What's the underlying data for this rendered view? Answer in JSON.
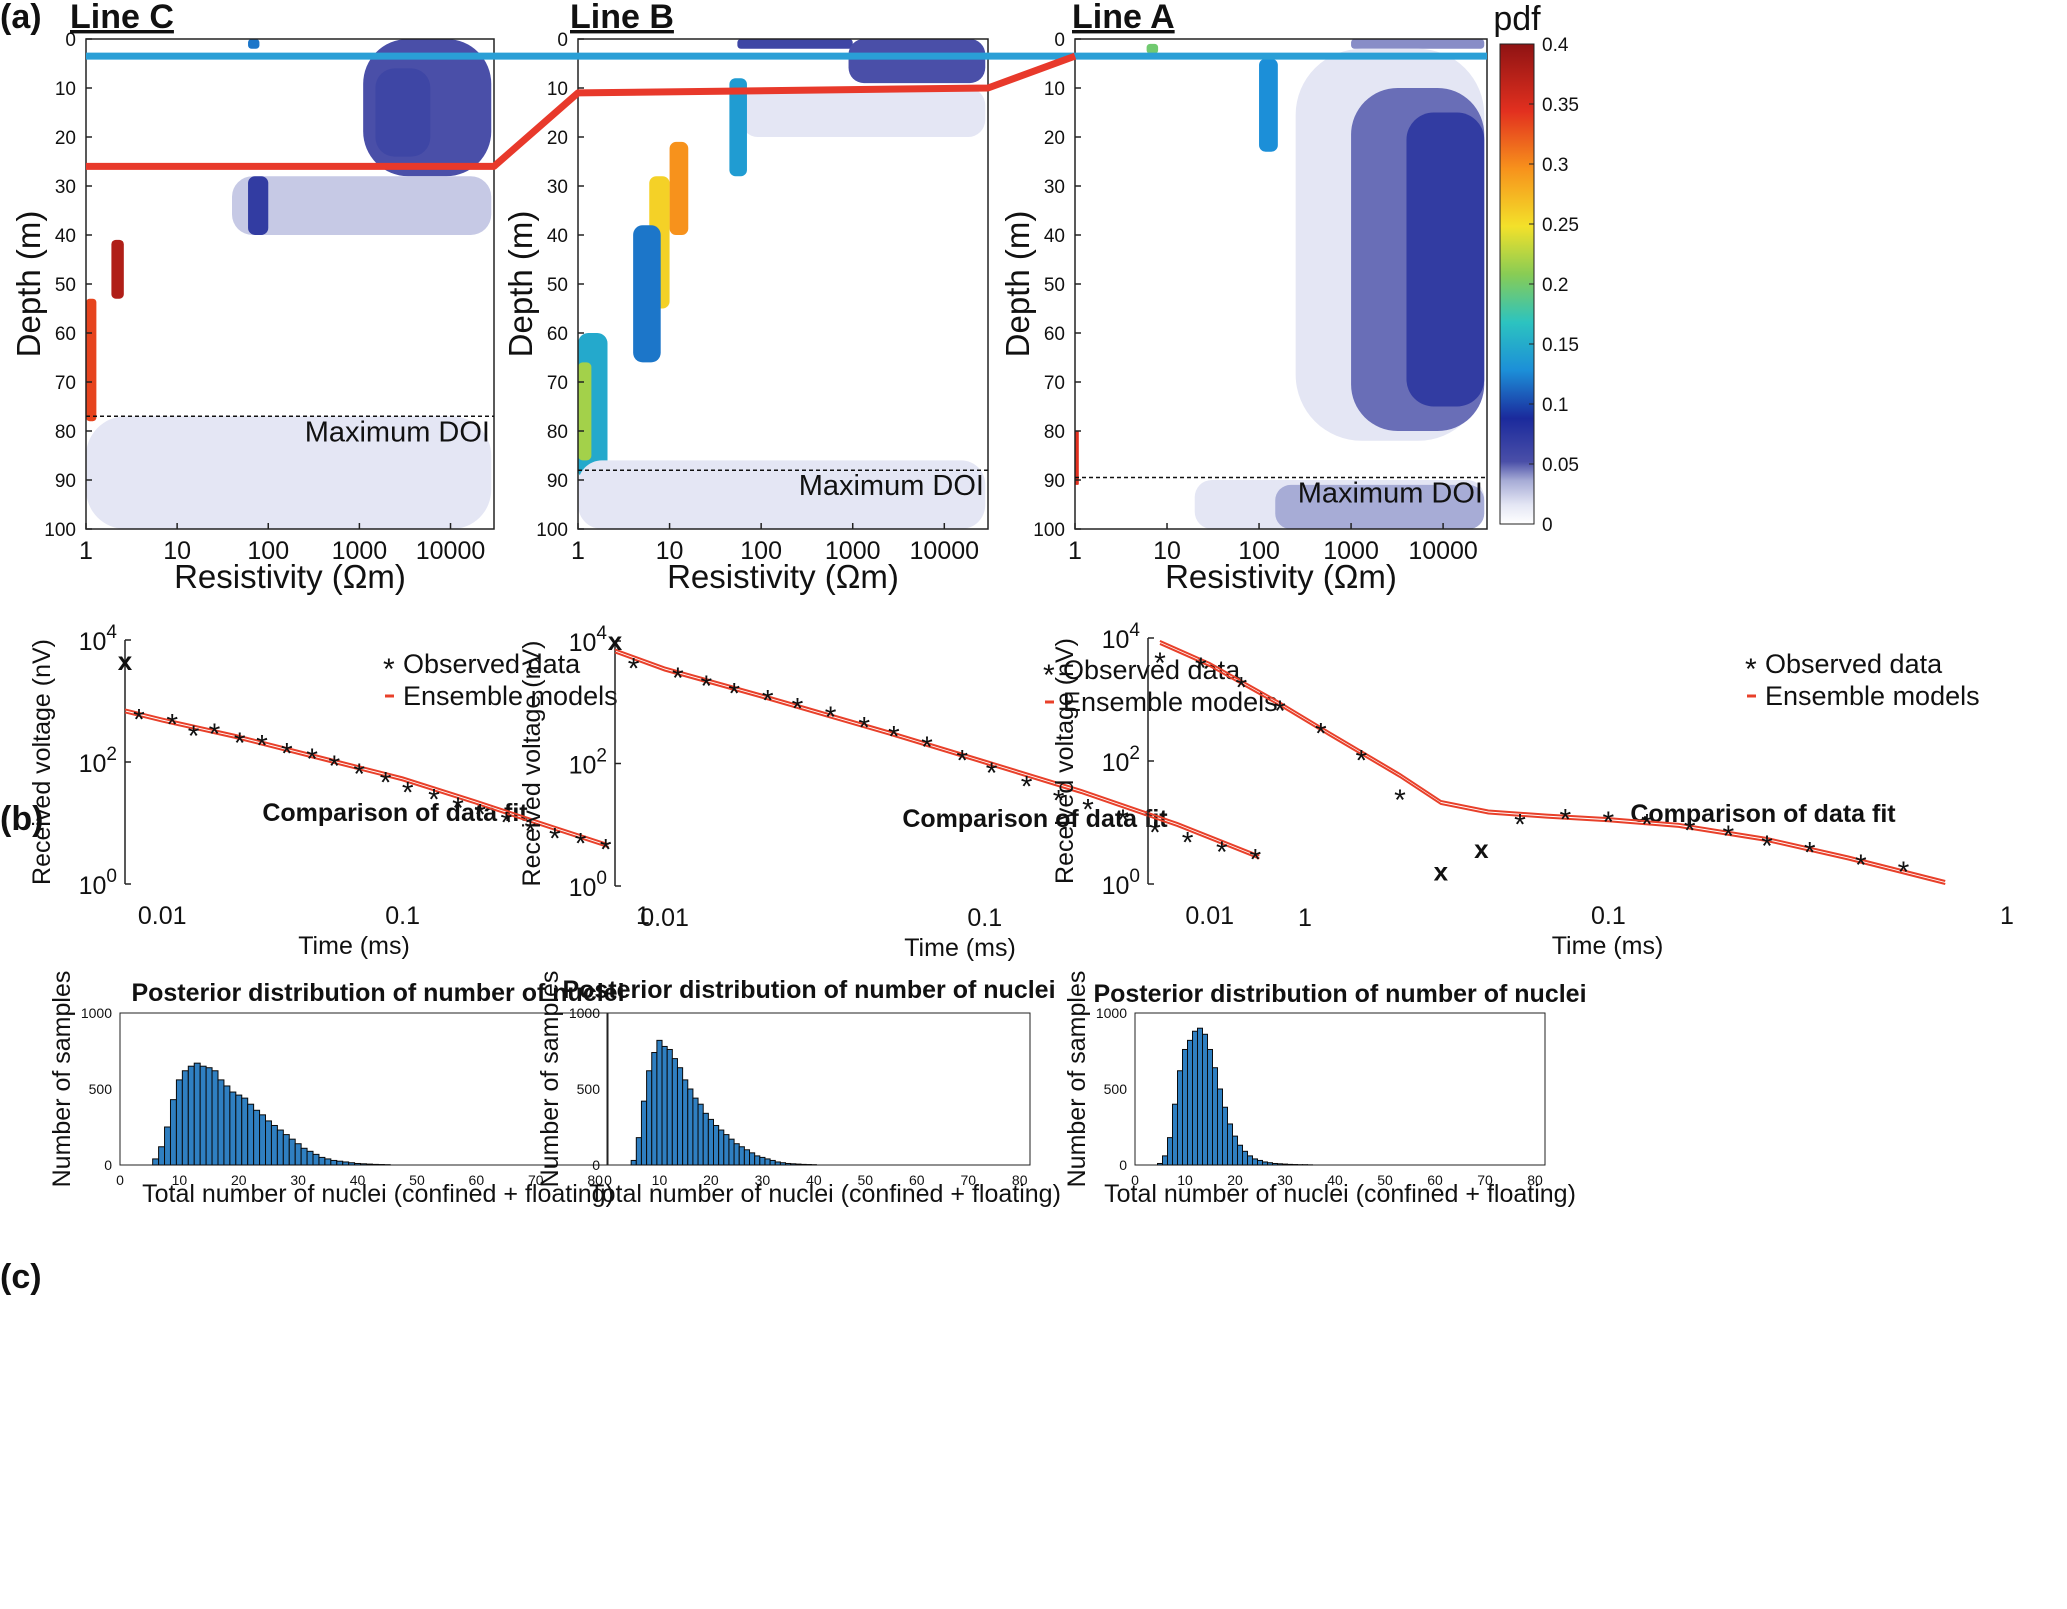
{
  "labels": {
    "panel_a": "(a)",
    "panel_b": "(b)",
    "panel_c": "(c)",
    "line_c": "Line C",
    "line_b": "Line B",
    "line_a": "Line A",
    "depth_label": "Depth (m)",
    "resistivity_label": "Resistivity (Ωm)",
    "doi_label": "Maximum DOI",
    "colorbar_label": "pdf",
    "fit_title": "Comparison of data fit",
    "voltage_label": "Received voltage (nV)",
    "time_label": "Time (ms)",
    "legend_observed": "Observed data",
    "legend_ensemble": "Ensemble models",
    "hist_title": "Posterior distribution of number of nuclei",
    "hist_ylabel": "Number of samples",
    "hist_xlabel": "Total number of nuclei (confined + floating)"
  },
  "colors": {
    "boundary_blue": "#2a9fd6",
    "boundary_red": "#e8392b",
    "observed": "#3a8fd9",
    "ensemble": "#e8402a",
    "bar": "#2f7fc1"
  },
  "chart_data": [
    {
      "type": "heatmap",
      "panel": "a",
      "title": "Line C",
      "xlabel": "Resistivity (Ωm)",
      "ylabel": "Depth (m)",
      "xscale": "log",
      "xlim": [
        1,
        30000
      ],
      "ylim": [
        100,
        0
      ],
      "xticks": [
        "1",
        "10",
        "100",
        "1000",
        "10000"
      ],
      "yticks": [
        "0",
        "10",
        "20",
        "30",
        "40",
        "50",
        "60",
        "70",
        "80",
        "90",
        "100"
      ],
      "max_doi_depth": 77,
      "blue_interface_depth": 3.5,
      "red_interface_depth": 26,
      "regions": [
        {
          "r": [
            60,
            80
          ],
          "d": [
            0,
            2
          ],
          "level": 0.12
        },
        {
          "r": [
            1100,
            28000
          ],
          "d": [
            0,
            28
          ],
          "level": 0.05
        },
        {
          "r": [
            1500,
            6000
          ],
          "d": [
            6,
            24
          ],
          "level": 0.06
        },
        {
          "r": [
            40,
            28000
          ],
          "d": [
            28,
            40
          ],
          "level": 0.025
        },
        {
          "r": [
            60,
            100
          ],
          "d": [
            28,
            40
          ],
          "level": 0.07
        },
        {
          "r": [
            1.0,
            1.3
          ],
          "d": [
            53,
            78
          ],
          "level": 0.34
        },
        {
          "r": [
            1.9,
            2.6
          ],
          "d": [
            41,
            53
          ],
          "level": 0.38
        },
        {
          "r": [
            1,
            28000
          ],
          "d": [
            77,
            100
          ],
          "level": 0.015
        }
      ]
    },
    {
      "type": "heatmap",
      "panel": "a",
      "title": "Line B",
      "xlabel": "Resistivity (Ωm)",
      "ylabel": "Depth (m)",
      "xscale": "log",
      "xlim": [
        1,
        30000
      ],
      "ylim": [
        100,
        0
      ],
      "xticks": [
        "1",
        "10",
        "100",
        "1000",
        "10000"
      ],
      "yticks": [
        "0",
        "10",
        "20",
        "30",
        "40",
        "50",
        "60",
        "70",
        "80",
        "90",
        "100"
      ],
      "max_doi_depth": 88,
      "blue_interface_depth": 3.5,
      "red_interface_depth": 11,
      "regions": [
        {
          "r": [
            55,
            1000
          ],
          "d": [
            0,
            2
          ],
          "level": 0.06
        },
        {
          "r": [
            900,
            28000
          ],
          "d": [
            0,
            9
          ],
          "level": 0.05
        },
        {
          "r": [
            60,
            28000
          ],
          "d": [
            10,
            20
          ],
          "level": 0.015
        },
        {
          "r": [
            45,
            70
          ],
          "d": [
            8,
            28
          ],
          "level": 0.14
        },
        {
          "r": [
            10,
            16
          ],
          "d": [
            21,
            40
          ],
          "level": 0.3
        },
        {
          "r": [
            6,
            10
          ],
          "d": [
            28,
            55
          ],
          "level": 0.26
        },
        {
          "r": [
            4,
            8
          ],
          "d": [
            38,
            66
          ],
          "level": 0.12
        },
        {
          "r": [
            1,
            2.1
          ],
          "d": [
            60,
            90
          ],
          "level": 0.15
        },
        {
          "r": [
            1,
            1.4
          ],
          "d": [
            66,
            86
          ],
          "level": 0.22
        },
        {
          "r": [
            1,
            28000
          ],
          "d": [
            86,
            100
          ],
          "level": 0.015
        }
      ]
    },
    {
      "type": "heatmap",
      "panel": "a",
      "title": "Line A",
      "xlabel": "Resistivity (Ωm)",
      "ylabel": "Depth (m)",
      "xscale": "log",
      "xlim": [
        1,
        30000
      ],
      "ylim": [
        100,
        0
      ],
      "xticks": [
        "1",
        "10",
        "100",
        "1000",
        "10000"
      ],
      "yticks": [
        "0",
        "10",
        "20",
        "30",
        "40",
        "50",
        "60",
        "70",
        "80",
        "90",
        "100"
      ],
      "max_doi_depth": 89.5,
      "blue_interface_depth": 3.5,
      "colorbar": {
        "label": "pdf",
        "min": 0,
        "max": 0.4,
        "ticks": [
          "0",
          "0.05",
          "0.1",
          "0.15",
          "0.2",
          "0.25",
          "0.3",
          "0.35",
          "0.4"
        ]
      },
      "regions": [
        {
          "r": [
            6,
            8
          ],
          "d": [
            1,
            3
          ],
          "level": 0.2
        },
        {
          "r": [
            1000,
            28000
          ],
          "d": [
            0,
            2
          ],
          "level": 0.04
        },
        {
          "r": [
            100,
            160
          ],
          "d": [
            4,
            23
          ],
          "level": 0.13
        },
        {
          "r": [
            250,
            28000
          ],
          "d": [
            2,
            82
          ],
          "level": 0.015
        },
        {
          "r": [
            1000,
            28000
          ],
          "d": [
            10,
            80
          ],
          "level": 0.045
        },
        {
          "r": [
            4000,
            28000
          ],
          "d": [
            15,
            75
          ],
          "level": 0.07
        },
        {
          "r": [
            1,
            1.1
          ],
          "d": [
            80,
            91
          ],
          "level": 0.35
        },
        {
          "r": [
            20,
            28000
          ],
          "d": [
            90,
            100
          ],
          "level": 0.015
        },
        {
          "r": [
            150,
            28000
          ],
          "d": [
            91,
            100
          ],
          "level": 0.035
        }
      ]
    },
    {
      "type": "scatter",
      "panel": "b",
      "title": "Comparison of data fit",
      "xlabel": "Time (ms)",
      "ylabel": "Received voltage (nV)",
      "xscale": "log",
      "yscale": "log",
      "xlim": [
        0.007,
        1
      ],
      "ylim": [
        1,
        10000
      ],
      "xticks": [
        "0.01",
        "0.1",
        "1"
      ],
      "yticks": [
        "10^0",
        "10^2",
        "10^4"
      ],
      "observed": {
        "x": [
          0.008,
          0.011,
          0.0135,
          0.0165,
          0.021,
          0.026,
          0.033,
          0.042,
          0.052,
          0.066,
          0.085,
          0.105,
          0.135,
          0.17,
          0.21,
          0.27,
          0.34,
          0.43,
          0.55,
          0.7
        ],
        "y": [
          540,
          440,
          290,
          310,
          220,
          200,
          150,
          120,
          92,
          68,
          50,
          34,
          26,
          19,
          15,
          11,
          8,
          6,
          5,
          4
        ]
      },
      "rejected": {
        "x": [
          0.007
        ],
        "y": [
          4500
        ]
      },
      "ensemble": {
        "x": [
          0.007,
          0.01,
          0.02,
          0.05,
          0.1,
          0.2,
          0.4,
          0.72
        ],
        "y": [
          650,
          460,
          250,
          100,
          50,
          21,
          8.5,
          4
        ]
      }
    },
    {
      "type": "scatter",
      "panel": "b",
      "title": "Comparison of data fit",
      "xlabel": "Time (ms)",
      "ylabel": "Received voltage (nV)",
      "xscale": "log",
      "yscale": "log",
      "xlim": [
        0.007,
        1
      ],
      "ylim": [
        1,
        10000
      ],
      "xticks": [
        "0.01",
        "0.1",
        "1"
      ],
      "yticks": [
        "10^0",
        "10^2",
        "10^4"
      ],
      "observed": {
        "x": [
          0.008,
          0.011,
          0.0135,
          0.0165,
          0.021,
          0.026,
          0.033,
          0.042,
          0.052,
          0.066,
          0.085,
          0.105,
          0.135,
          0.17,
          0.21,
          0.27,
          0.34,
          0.43,
          0.55,
          0.7
        ],
        "y": [
          3800,
          2700,
          2000,
          1500,
          1150,
          850,
          620,
          420,
          300,
          200,
          120,
          75,
          45,
          27,
          19,
          13,
          8,
          5.5,
          3.9,
          2.9
        ]
      },
      "rejected": {
        "x": [
          0.007
        ],
        "y": [
          10000
        ]
      },
      "ensemble": {
        "x": [
          0.007,
          0.01,
          0.02,
          0.05,
          0.1,
          0.2,
          0.4,
          0.72
        ],
        "y": [
          6500,
          3300,
          1200,
          300,
          100,
          33,
          9.5,
          2.8
        ]
      }
    },
    {
      "type": "scatter",
      "panel": "b",
      "title": "Comparison of data fit",
      "xlabel": "Time (ms)",
      "ylabel": "Received voltage (nV)",
      "xscale": "log",
      "yscale": "log",
      "xlim": [
        0.007,
        1
      ],
      "ylim": [
        1,
        10000
      ],
      "xticks": [
        "0.01",
        "0.1",
        "1"
      ],
      "yticks": [
        "10^0",
        "10^2",
        "10^4"
      ],
      "observed": {
        "x": [
          0.0075,
          0.0095,
          0.012,
          0.015,
          0.019,
          0.024,
          0.03,
          0.06,
          0.078,
          0.1,
          0.125,
          0.16,
          0.2,
          0.25,
          0.32,
          0.43,
          0.55
        ],
        "y": [
          4200,
          3500,
          1700,
          700,
          300,
          110,
          25,
          10,
          12,
          11,
          10,
          8,
          6.5,
          4.5,
          3.5,
          2.2,
          1.7
        ]
      },
      "rejected": {
        "x": [
          0.038,
          0.048
        ],
        "y": [
          1.6,
          3.7
        ]
      },
      "ensemble": {
        "x": [
          0.0075,
          0.01,
          0.015,
          0.02,
          0.03,
          0.038,
          0.05,
          0.07,
          0.1,
          0.15,
          0.25,
          0.4,
          0.7
        ],
        "y": [
          8000,
          3500,
          800,
          260,
          55,
          20,
          14,
          12,
          10.5,
          8.5,
          5,
          2.5,
          1
        ]
      }
    },
    {
      "type": "bar",
      "panel": "c",
      "title": "Posterior distribution of number of nuclei",
      "xlabel": "Total number of nuclei (confined + floating)",
      "ylabel": "Number of samples",
      "xlim": [
        0,
        82
      ],
      "ylim": [
        0,
        1000
      ],
      "xticks": [
        "0",
        "10",
        "20",
        "30",
        "40",
        "50",
        "60",
        "70",
        "80"
      ],
      "yticks": [
        "0",
        "500",
        "1000"
      ],
      "categories": [
        6,
        7,
        8,
        9,
        10,
        11,
        12,
        13,
        14,
        15,
        16,
        17,
        18,
        19,
        20,
        21,
        22,
        23,
        24,
        25,
        26,
        27,
        28,
        29,
        30,
        31,
        32,
        33,
        34,
        35,
        36,
        37,
        38,
        39,
        40,
        41,
        42,
        43,
        44,
        45
      ],
      "values": [
        40,
        120,
        250,
        430,
        560,
        620,
        650,
        670,
        650,
        640,
        620,
        560,
        520,
        480,
        460,
        440,
        400,
        360,
        330,
        290,
        260,
        230,
        200,
        170,
        140,
        110,
        90,
        70,
        50,
        40,
        30,
        25,
        20,
        15,
        10,
        8,
        6,
        4,
        3,
        2
      ]
    },
    {
      "type": "bar",
      "panel": "c",
      "title": "Posterior distribution of number of nuclei",
      "xlabel": "Total number of nuclei (confined + floating)",
      "ylabel": "Number of samples",
      "xlim": [
        0,
        82
      ],
      "ylim": [
        0,
        1000
      ],
      "xticks": [
        "0",
        "10",
        "20",
        "30",
        "40",
        "50",
        "60",
        "70",
        "80"
      ],
      "yticks": [
        "0",
        "500",
        "1000"
      ],
      "categories": [
        5,
        6,
        7,
        8,
        9,
        10,
        11,
        12,
        13,
        14,
        15,
        16,
        17,
        18,
        19,
        20,
        21,
        22,
        23,
        24,
        25,
        26,
        27,
        28,
        29,
        30,
        31,
        32,
        33,
        34,
        35,
        36,
        37,
        38,
        39,
        40
      ],
      "values": [
        30,
        180,
        420,
        620,
        740,
        820,
        780,
        760,
        700,
        640,
        560,
        500,
        440,
        400,
        340,
        300,
        260,
        230,
        200,
        170,
        140,
        120,
        100,
        80,
        60,
        50,
        40,
        30,
        20,
        15,
        10,
        8,
        6,
        4,
        3,
        2
      ]
    },
    {
      "type": "bar",
      "panel": "c",
      "title": "Posterior distribution of number of nuclei",
      "xlabel": "Total number of nuclei (confined + floating)",
      "ylabel": "Number of samples",
      "xlim": [
        0,
        82
      ],
      "ylim": [
        0,
        1000
      ],
      "xticks": [
        "0",
        "10",
        "20",
        "30",
        "40",
        "50",
        "60",
        "70",
        "80"
      ],
      "yticks": [
        "0",
        "500",
        "1000"
      ],
      "categories": [
        5,
        6,
        7,
        8,
        9,
        10,
        11,
        12,
        13,
        14,
        15,
        16,
        17,
        18,
        19,
        20,
        21,
        22,
        23,
        24,
        25,
        26,
        27,
        28,
        29,
        30,
        31,
        32,
        33,
        34,
        35
      ],
      "values": [
        10,
        60,
        180,
        400,
        620,
        760,
        820,
        880,
        900,
        860,
        760,
        640,
        500,
        380,
        270,
        190,
        130,
        90,
        60,
        40,
        30,
        20,
        15,
        10,
        8,
        6,
        4,
        3,
        2,
        2,
        1
      ]
    }
  ]
}
